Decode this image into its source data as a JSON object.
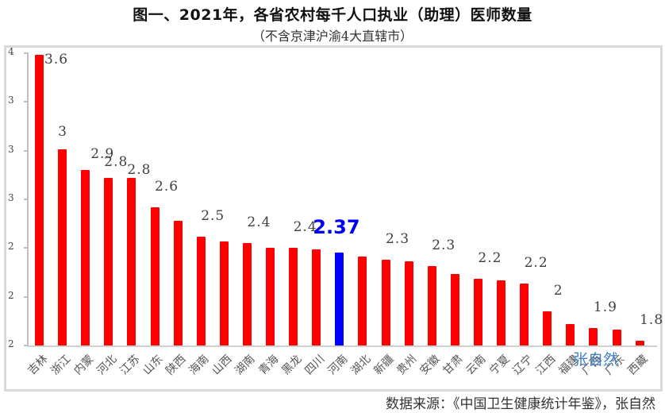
{
  "header": {
    "title": "图一、2021年，各省农村每千人口执业（助理）医师数量",
    "subtitle": "（不含京津沪渝4大直辖市）"
  },
  "footer": {
    "source": "数据来源：《中国卫生健康统计年鉴》，张自然",
    "watermark": "张自然"
  },
  "colors": {
    "bar": "#ff0000",
    "highlight": "#0000ff",
    "axis": "#bfbfbf",
    "frame": "#d9d9d9"
  },
  "chart_data": {
    "type": "bar",
    "title": "图一、2021年，各省农村每千人口执业（助理）医师数量",
    "subtitle": "（不含京津沪渝4大直辖市）",
    "xlabel": "",
    "ylabel": "",
    "ylim": [
      1.8,
      3.6
    ],
    "y_ticks": [
      1.8,
      2.1,
      2.4,
      2.7,
      3.0,
      3.3,
      3.6
    ],
    "y_tick_labels": [
      "2",
      "2",
      "2",
      "3",
      "3",
      "3",
      "4"
    ],
    "grid": false,
    "legend": null,
    "highlight_category": "河南",
    "categories": [
      "吉林",
      "浙江",
      "内蒙",
      "河北",
      "江苏",
      "山东",
      "陕西",
      "海南",
      "山西",
      "湖南",
      "青海",
      "黑龙",
      "四川",
      "河南",
      "湖北",
      "新疆",
      "贵州",
      "安徽",
      "甘肃",
      "云南",
      "宁夏",
      "辽宁",
      "江西",
      "福建",
      "广西",
      "广东",
      "西藏"
    ],
    "values": [
      3.59,
      3.01,
      2.88,
      2.83,
      2.83,
      2.65,
      2.57,
      2.47,
      2.44,
      2.43,
      2.4,
      2.4,
      2.39,
      2.37,
      2.35,
      2.33,
      2.32,
      2.29,
      2.24,
      2.21,
      2.2,
      2.18,
      2.01,
      1.93,
      1.91,
      1.9,
      1.83
    ],
    "data_labels": [
      "3.6",
      "3",
      "2.9",
      "2.8",
      "2.8",
      "2.6",
      "",
      "2.5",
      "",
      "2.4",
      "",
      "2.4",
      "",
      "2.37",
      "",
      "2.3",
      "",
      "2.3",
      "",
      "2.2",
      "",
      "2.2",
      "2",
      "",
      "1.9",
      "",
      "1.8"
    ],
    "annotations": [
      "张自然"
    ],
    "source": "数据来源：《中国卫生健康统计年鉴》，张自然"
  }
}
